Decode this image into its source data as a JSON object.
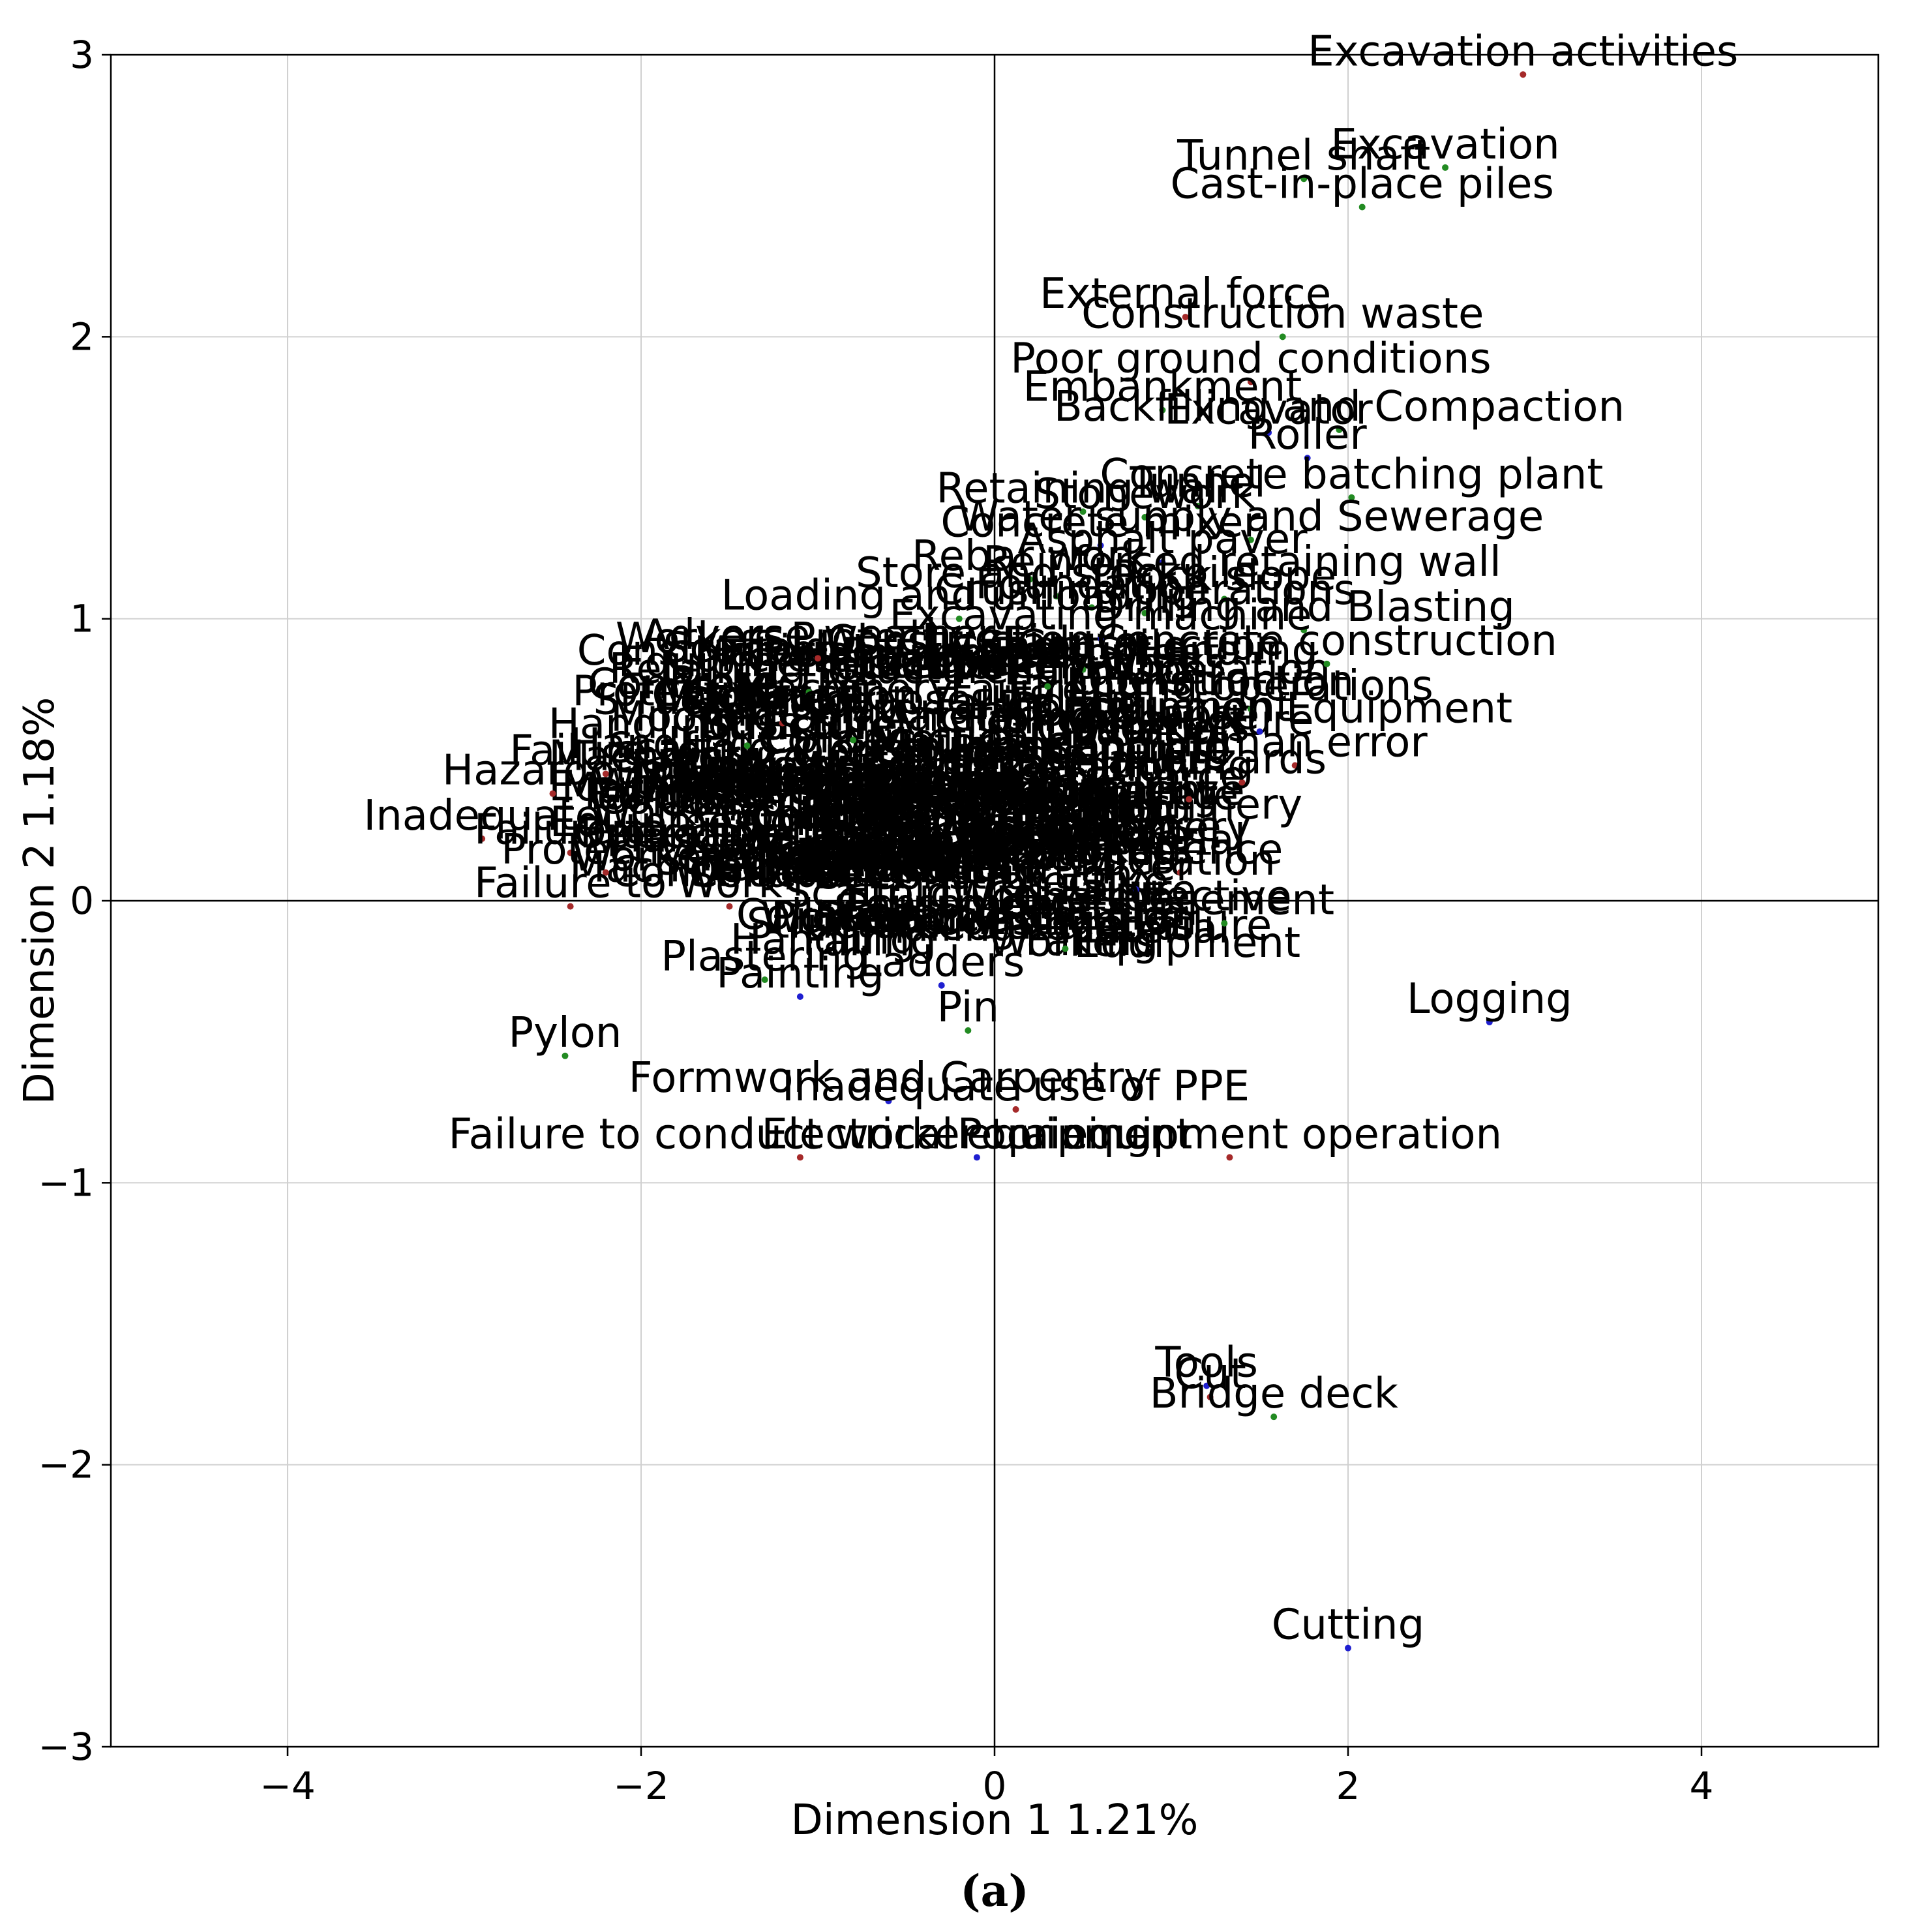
{
  "chart_data": {
    "type": "scatter",
    "title": "",
    "caption": "(a)",
    "xlabel": "Dimension 1  1.21%",
    "ylabel": "Dimension 2  1.18%",
    "xlim": [
      -5,
      5
    ],
    "ylim": [
      -3,
      3
    ],
    "xticks": [
      -4,
      -2,
      0,
      2,
      4
    ],
    "yticks": [
      -3,
      -2,
      -1,
      0,
      1,
      2,
      3
    ],
    "xtick_labels": [
      "−4",
      "−2",
      "0",
      "2",
      "4"
    ],
    "ytick_labels": [
      "−3",
      "−2",
      "−1",
      "0",
      "1",
      "2",
      "3"
    ],
    "grid": true,
    "colors": {
      "red": "#a52a2a",
      "green": "#228b22",
      "blue": "#1f1fd0",
      "orange": "#ff8c00"
    },
    "points": [
      {
        "label": "Excavation activities",
        "x": 2.99,
        "y": 2.93,
        "c": "red"
      },
      {
        "label": "Excavation",
        "x": 2.55,
        "y": 2.6,
        "c": "green"
      },
      {
        "label": "Tunnel shaft",
        "x": 1.75,
        "y": 2.56,
        "c": "green"
      },
      {
        "label": "Cast-in-place piles",
        "x": 2.08,
        "y": 2.46,
        "c": "green"
      },
      {
        "label": "External force",
        "x": 1.08,
        "y": 2.07,
        "c": "red"
      },
      {
        "label": "Construction waste",
        "x": 1.63,
        "y": 2.0,
        "c": "green"
      },
      {
        "label": "Poor ground conditions",
        "x": 1.45,
        "y": 1.84,
        "c": "red"
      },
      {
        "label": "Embankment",
        "x": 0.95,
        "y": 1.74,
        "c": "green"
      },
      {
        "label": "Backfilling and Compaction",
        "x": 1.95,
        "y": 1.67,
        "c": "green"
      },
      {
        "label": "Excavator",
        "x": 1.55,
        "y": 1.66,
        "c": "blue"
      },
      {
        "label": "Roller",
        "x": 1.77,
        "y": 1.57,
        "c": "blue"
      },
      {
        "label": "Concrete batching plant",
        "x": 2.02,
        "y": 1.43,
        "c": "green"
      },
      {
        "label": "Retaining wall",
        "x": 0.5,
        "y": 1.38,
        "c": "green"
      },
      {
        "label": "Stonework",
        "x": 0.85,
        "y": 1.36,
        "c": "green"
      },
      {
        "label": "Tunnel",
        "x": 1.15,
        "y": 1.4,
        "c": "green"
      },
      {
        "label": "Water supply and Sewerage",
        "x": 1.45,
        "y": 1.28,
        "c": "green"
      },
      {
        "label": "Concrete mixer",
        "x": 0.6,
        "y": 1.26,
        "c": "blue"
      },
      {
        "label": "Asphalt paver",
        "x": 0.95,
        "y": 1.2,
        "c": "blue"
      },
      {
        "label": "Reinforced retaining wall",
        "x": 1.4,
        "y": 1.12,
        "c": "green"
      },
      {
        "label": "Rebar work",
        "x": 0.2,
        "y": 1.14,
        "c": "green"
      },
      {
        "label": "Store and stockpile",
        "x": 0.35,
        "y": 1.08,
        "c": "green"
      },
      {
        "label": "Rock slope",
        "x": 1.3,
        "y": 1.07,
        "c": "green"
      },
      {
        "label": "Foundation",
        "x": 0.55,
        "y": 1.04,
        "c": "green"
      },
      {
        "label": "Loading and unloading",
        "x": -0.2,
        "y": 1.0,
        "c": "green"
      },
      {
        "label": "Crushing operations",
        "x": 0.85,
        "y": 1.02,
        "c": "green"
      },
      {
        "label": "Drilling and Blasting",
        "x": 1.75,
        "y": 0.96,
        "c": "green"
      },
      {
        "label": "Excavating machine",
        "x": 0.6,
        "y": 0.93,
        "c": "blue"
      },
      {
        "label": "Adverse weather",
        "x": -1.0,
        "y": 0.86,
        "c": "red"
      },
      {
        "label": "Sheet pile",
        "x": 0.5,
        "y": 0.82,
        "c": "green"
      },
      {
        "label": "Concrete construction",
        "x": 1.88,
        "y": 0.84,
        "c": "green"
      },
      {
        "label": "Retaining structure",
        "x": -1.05,
        "y": 0.74,
        "c": "green"
      },
      {
        "label": "Temporary works",
        "x": 0.3,
        "y": 0.76,
        "c": "green"
      },
      {
        "label": "Lifting operations",
        "x": 1.45,
        "y": 0.68,
        "c": "green"
      },
      {
        "label": "Structure collapse",
        "x": -1.2,
        "y": 0.63,
        "c": "red"
      },
      {
        "label": "Construction Equipment",
        "x": 1.5,
        "y": 0.6,
        "c": "blue"
      },
      {
        "label": "Truss",
        "x": -1.4,
        "y": 0.55,
        "c": "green"
      },
      {
        "label": "Human error",
        "x": 1.7,
        "y": 0.48,
        "c": "red"
      },
      {
        "label": "Mooring and Anchoring",
        "x": -0.8,
        "y": 0.57,
        "c": "green"
      },
      {
        "label": "Failure to",
        "x": -2.2,
        "y": 0.45,
        "c": "red"
      },
      {
        "label": "Hazardous",
        "x": -2.5,
        "y": 0.38,
        "c": "red"
      },
      {
        "label": "Hazards",
        "x": 1.4,
        "y": 0.42,
        "c": "red"
      },
      {
        "label": "Force",
        "x": 1.1,
        "y": 0.36,
        "c": "red"
      },
      {
        "label": "Inadequate",
        "x": -2.9,
        "y": 0.22,
        "c": "red"
      },
      {
        "label": "Failure to",
        "x": -2.4,
        "y": 0.17,
        "c": "red"
      },
      {
        "label": "Protective",
        "x": -2.2,
        "y": 0.1,
        "c": "red"
      },
      {
        "label": "Sequence",
        "x": 1.05,
        "y": 0.1,
        "c": "red"
      },
      {
        "label": "Mixer",
        "x": 0.8,
        "y": 0.04,
        "c": "blue"
      },
      {
        "label": "Failure to",
        "x": -2.4,
        "y": -0.02,
        "c": "red"
      },
      {
        "label": "Work",
        "x": -1.5,
        "y": -0.02,
        "c": "red"
      },
      {
        "label": "Placement",
        "x": 1.3,
        "y": -0.08,
        "c": "green"
      },
      {
        "label": "Connections",
        "x": 0.4,
        "y": -0.17,
        "c": "green"
      },
      {
        "label": "Plastering",
        "x": -1.3,
        "y": -0.28,
        "c": "green"
      },
      {
        "label": "Painting",
        "x": -1.1,
        "y": -0.34,
        "c": "blue"
      },
      {
        "label": "Ladders",
        "x": -0.3,
        "y": -0.3,
        "c": "blue"
      },
      {
        "label": "Logging",
        "x": 2.8,
        "y": -0.43,
        "c": "blue"
      },
      {
        "label": "Pin",
        "x": -0.15,
        "y": -0.46,
        "c": "green"
      },
      {
        "label": "Pylon",
        "x": -2.43,
        "y": -0.55,
        "c": "green"
      },
      {
        "label": "Formwork and Carpentry",
        "x": -0.6,
        "y": -0.71,
        "c": "blue"
      },
      {
        "label": "Inadequate use of PPE",
        "x": 0.12,
        "y": -0.74,
        "c": "red"
      },
      {
        "label": "Failure to conduct worker training",
        "x": -1.1,
        "y": -0.91,
        "c": "red"
      },
      {
        "label": "Electrical equipment",
        "x": -0.1,
        "y": -0.91,
        "c": "blue"
      },
      {
        "label": "Poor equipment operation",
        "x": 1.33,
        "y": -0.91,
        "c": "red"
      },
      {
        "label": "Tools",
        "x": 1.2,
        "y": -1.72,
        "c": "blue"
      },
      {
        "label": "Cut",
        "x": 1.22,
        "y": -1.76,
        "c": "red"
      },
      {
        "label": "Bridge deck",
        "x": 1.58,
        "y": -1.83,
        "c": "green"
      },
      {
        "label": "Cutting",
        "x": 2.0,
        "y": -2.65,
        "c": "blue"
      }
    ]
  }
}
